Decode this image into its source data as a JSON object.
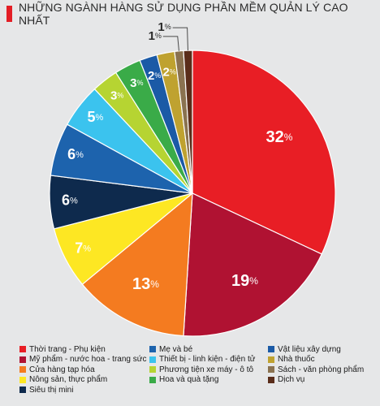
{
  "title": "NHỮNG NGÀNH HÀNG SỬ DỤNG PHẦN MỀM QUẢN LÝ CAO NHẤT",
  "colors": {
    "title_accent": "#e31e25",
    "background": "#e6e7e8"
  },
  "chart_data": {
    "type": "pie",
    "title": "NHỮNG NGÀNH HÀNG SỬ DỤNG PHẦN MỀM QUẢN LÝ CAO NHẤT",
    "unit": "%",
    "legend_position": "bottom",
    "slices": [
      {
        "name": "Thời trang - Phụ kiện",
        "value": 32,
        "label": "32",
        "color": "#e81e25"
      },
      {
        "name": "Mỹ phẩm - nước hoa - trang sức",
        "value": 19,
        "label": "19",
        "color": "#b01232"
      },
      {
        "name": "Cửa hàng tạp hóa",
        "value": 13,
        "label": "13",
        "color": "#f47b20"
      },
      {
        "name": "Nông sản, thực phẩm",
        "value": 7,
        "label": "7",
        "color": "#fde723"
      },
      {
        "name": "Siêu thị mini",
        "value": 6,
        "label": "6",
        "color": "#0e2a4d"
      },
      {
        "name": "Mẹ và bé",
        "value": 6,
        "label": "6",
        "color": "#1d63ad"
      },
      {
        "name": "Thiết bị - linh kiện - điện tử",
        "value": 5,
        "label": "5",
        "color": "#3bc3ee"
      },
      {
        "name": "Phương tiện xe máy - ô tô",
        "value": 3,
        "label": "3",
        "color": "#b6d432"
      },
      {
        "name": "Hoa và quà tặng",
        "value": 3,
        "label": "3",
        "color": "#3aab48"
      },
      {
        "name": "Vật liệu xây dựng",
        "value": 2,
        "label": "2",
        "color": "#1b5aa6"
      },
      {
        "name": "Nhà thuốc",
        "value": 2,
        "label": "2",
        "color": "#bfa230"
      },
      {
        "name": "Sách - văn phòng phẩm",
        "value": 1,
        "label": "1",
        "color": "#8a7250"
      },
      {
        "name": "Dịch vụ",
        "value": 1,
        "label": "1",
        "color": "#5a2d1a"
      }
    ],
    "legend": [
      {
        "label": "Thời trang - Phụ kiện",
        "color": "#e81e25"
      },
      {
        "label": "Mỹ phẩm - nước hoa - trang sức",
        "color": "#b01232"
      },
      {
        "label": "Cửa hàng tạp hóa",
        "color": "#f47b20"
      },
      {
        "label": "Nông sản, thực phẩm",
        "color": "#fde723"
      },
      {
        "label": "Siêu thị mini",
        "color": "#0e2a4d"
      },
      {
        "label": "Mẹ và bé",
        "color": "#1d63ad"
      },
      {
        "label": "Thiết bị - linh kiện - điện tử",
        "color": "#3bc3ee"
      },
      {
        "label": "Phương tiện xe máy - ô tô",
        "color": "#b6d432"
      },
      {
        "label": "Hoa và quà tặng",
        "color": "#3aab48"
      },
      {
        "label": "Vật liệu xây dựng",
        "color": "#1b5aa6"
      },
      {
        "label": "Nhà thuốc",
        "color": "#bfa230"
      },
      {
        "label": "Sách - văn phòng phẩm",
        "color": "#8a7250"
      },
      {
        "label": "Dịch vụ",
        "color": "#5a2d1a"
      }
    ]
  }
}
